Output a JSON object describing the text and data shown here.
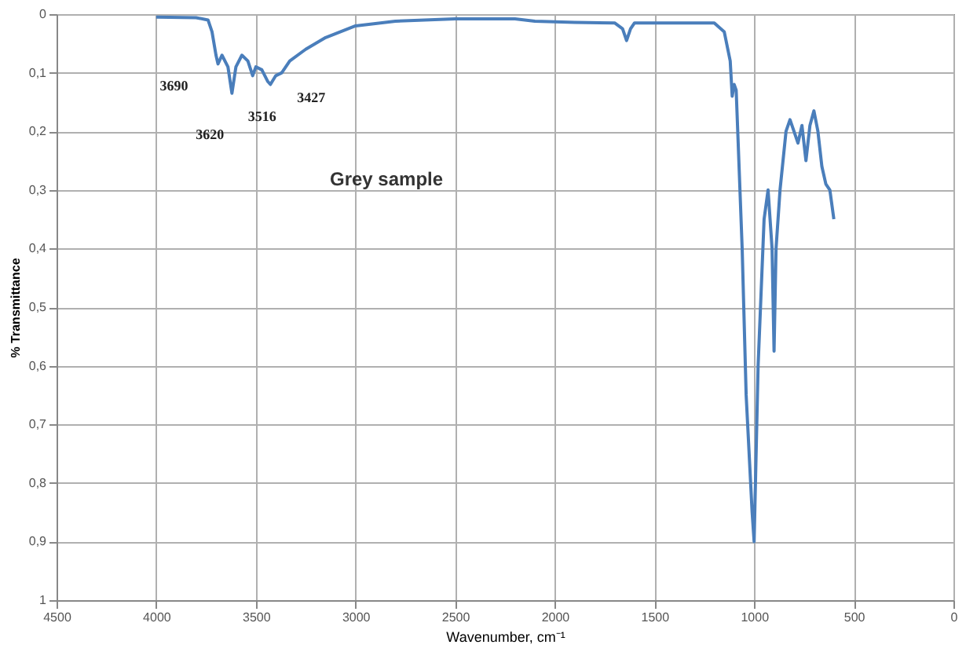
{
  "chart_data": {
    "type": "line",
    "title": "Grey sample",
    "xlabel": "Wavenumber, cm⁻¹",
    "ylabel": "% Transmittance",
    "x": [
      4000,
      3800,
      3740,
      3720,
      3700,
      3690,
      3670,
      3640,
      3620,
      3600,
      3570,
      3540,
      3516,
      3500,
      3470,
      3440,
      3427,
      3400,
      3370,
      3330,
      3250,
      3150,
      3000,
      2800,
      2500,
      2200,
      2100,
      1900,
      1700,
      1660,
      1640,
      1620,
      1600,
      1200,
      1150,
      1120,
      1110,
      1100,
      1090,
      1060,
      1040,
      1010,
      1000,
      980,
      950,
      930,
      910,
      900,
      890,
      870,
      840,
      820,
      800,
      780,
      760,
      740,
      720,
      700,
      680,
      660,
      640,
      620,
      600
    ],
    "series": [
      {
        "color": "#4a7ebb",
        "values": [
          0.005,
          0.006,
          0.01,
          0.03,
          0.07,
          0.085,
          0.07,
          0.09,
          0.135,
          0.09,
          0.07,
          0.08,
          0.105,
          0.09,
          0.095,
          0.115,
          0.12,
          0.105,
          0.1,
          0.08,
          0.06,
          0.04,
          0.02,
          0.012,
          0.008,
          0.008,
          0.012,
          0.014,
          0.015,
          0.025,
          0.045,
          0.025,
          0.015,
          0.015,
          0.03,
          0.08,
          0.14,
          0.12,
          0.13,
          0.4,
          0.65,
          0.85,
          0.9,
          0.6,
          0.35,
          0.3,
          0.4,
          0.575,
          0.4,
          0.3,
          0.2,
          0.18,
          0.2,
          0.22,
          0.19,
          0.25,
          0.19,
          0.165,
          0.2,
          0.26,
          0.29,
          0.3,
          0.35
        ]
      }
    ],
    "xlim": [
      4500,
      0
    ],
    "xticks": [
      4500,
      4000,
      3500,
      3000,
      2500,
      2000,
      1500,
      1000,
      500,
      0
    ],
    "ylim": [
      1,
      0
    ],
    "yticks": [
      0,
      {
        "value": 0.1,
        "label": "0,1"
      },
      {
        "value": 0.2,
        "label": "0,2"
      },
      {
        "value": 0.3,
        "label": "0,3"
      },
      {
        "value": 0.4,
        "label": "0,4"
      },
      {
        "value": 0.5,
        "label": "0,5"
      },
      {
        "value": 0.6,
        "label": "0,6"
      },
      {
        "value": 0.7,
        "label": "0,7"
      },
      {
        "value": 0.8,
        "label": "0,8"
      },
      {
        "value": 0.9,
        "label": "0,9"
      },
      1
    ],
    "annotations": [
      {
        "text": "3690",
        "x": 3690,
        "y": 0.085
      },
      {
        "text": "3620",
        "x": 3620,
        "y": 0.135
      },
      {
        "text": "3516",
        "x": 3516,
        "y": 0.105
      },
      {
        "text": "3427",
        "x": 3427,
        "y": 0.12
      }
    ],
    "grid": true,
    "marker": "none",
    "line_style": "solid"
  }
}
